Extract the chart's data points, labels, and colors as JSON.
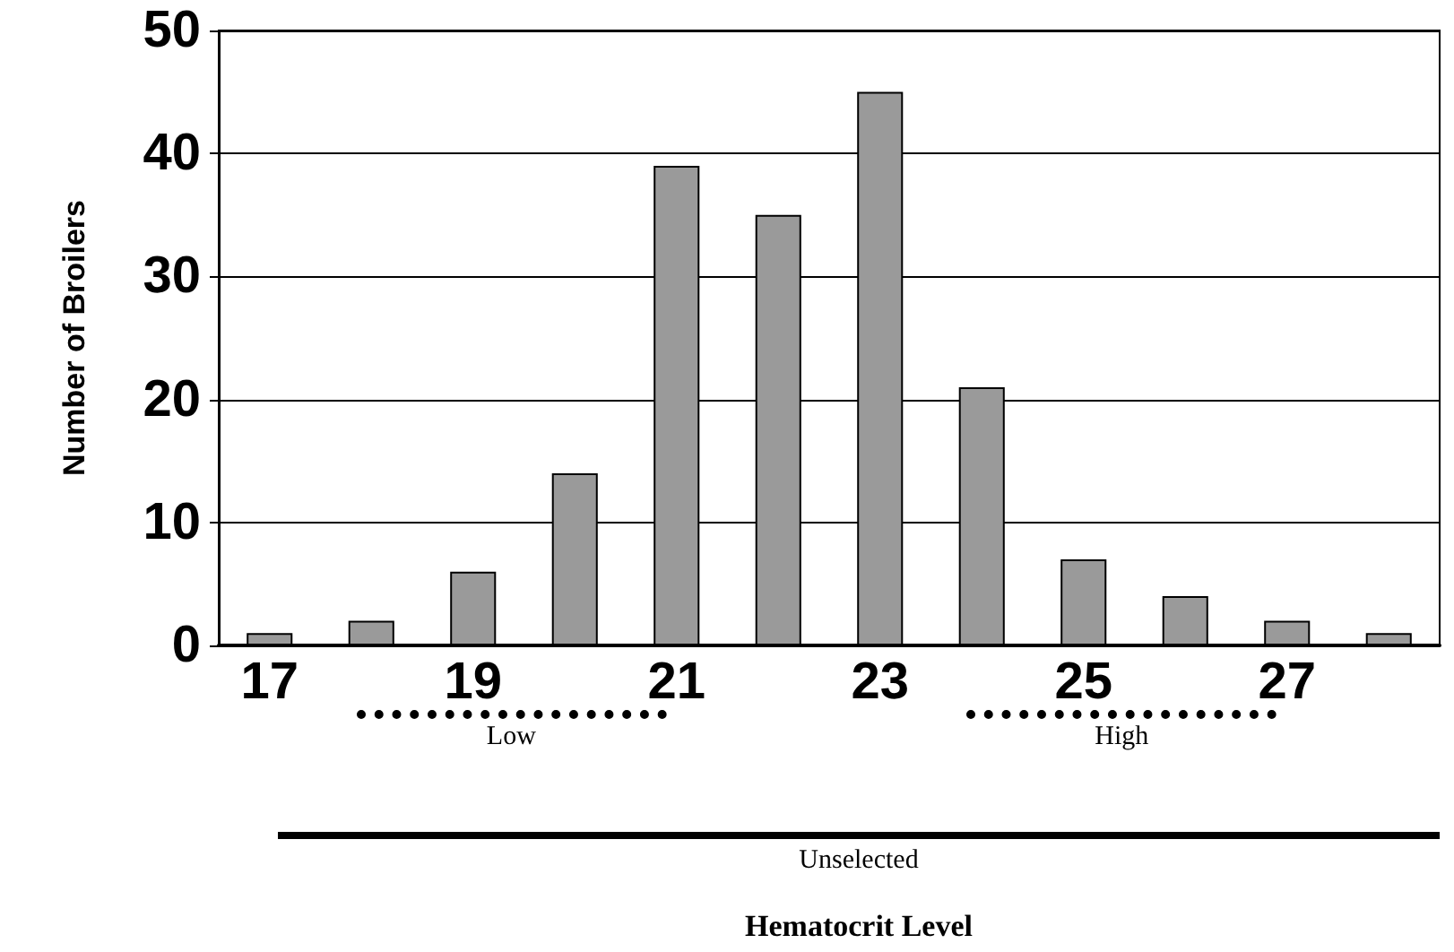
{
  "chart_data": {
    "type": "bar",
    "ylabel": "Number of Broilers",
    "categories": [
      "17",
      null,
      "19",
      null,
      "21",
      null,
      "23",
      null,
      "25",
      null,
      "27",
      null
    ],
    "values": [
      1,
      2,
      6,
      14,
      39,
      35,
      45,
      21,
      7,
      4,
      2,
      1
    ],
    "color": "#9a9a9a",
    "ylim": [
      0,
      50
    ],
    "yticks": [
      0,
      10,
      20,
      30,
      40,
      50
    ],
    "grid": "y",
    "annotations": [
      "Low",
      "High",
      "Unselected",
      "Hematocrit Level"
    ]
  }
}
